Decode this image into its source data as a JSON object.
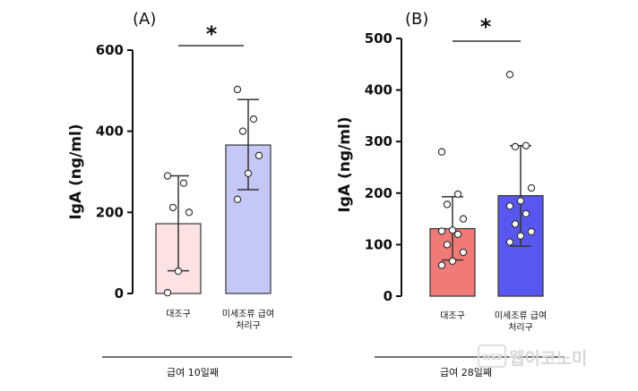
{
  "chart_data": [
    {
      "type": "bar",
      "panel_label": "(A)",
      "ylabel": "IgA (ng/ml)",
      "ylim": [
        0,
        600
      ],
      "yticks": [
        "0",
        "200",
        "400",
        "600"
      ],
      "categories": [
        [
          "대조구"
        ],
        [
          "미세조류 급여",
          "처리구"
        ]
      ],
      "values": [
        172,
        366
      ],
      "error_low": [
        56,
        256
      ],
      "error_high": [
        290,
        478
      ],
      "points": [
        [
          2,
          55,
          200,
          212,
          272,
          290
        ],
        [
          232,
          296,
          340,
          400,
          430,
          503
        ]
      ],
      "colors": [
        "#fde2e5",
        "#c5c7f7"
      ],
      "significance": "*",
      "footer": "급여 10일째"
    },
    {
      "type": "bar",
      "panel_label": "(B)",
      "ylabel": "IgA (ng/ml)",
      "ylim": [
        0,
        500
      ],
      "yticks": [
        "0",
        "100",
        "200",
        "300",
        "400",
        "500"
      ],
      "categories": [
        [
          "대조구"
        ],
        [
          "미세조류 급여",
          "처리구"
        ]
      ],
      "values": [
        131,
        195
      ],
      "error_low": [
        70,
        97
      ],
      "error_high": [
        193,
        292
      ],
      "points": [
        [
          60,
          68,
          85,
          100,
          120,
          126,
          128,
          150,
          178,
          198,
          280
        ],
        [
          105,
          117,
          125,
          140,
          160,
          175,
          185,
          210,
          290,
          292,
          430
        ]
      ],
      "colors": [
        "#f07a78",
        "#5858f0"
      ],
      "significance": "*",
      "footer": "급여 28일째"
    }
  ],
  "watermark": {
    "small": "WEB",
    "text": "웹이코노미"
  }
}
